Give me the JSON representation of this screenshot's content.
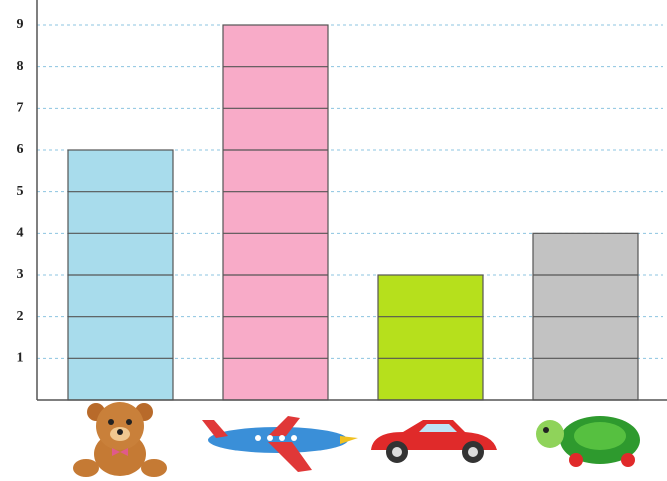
{
  "chart_data": {
    "type": "bar",
    "categories": [
      null,
      null,
      null,
      null
    ],
    "values": [
      6,
      9,
      3,
      4
    ],
    "colors": [
      "#a8dcec",
      "#f8abc8",
      "#b6e01c",
      "#c2c2c2"
    ],
    "ylim": [
      0,
      9
    ],
    "yticks": [
      1,
      2,
      3,
      4,
      5,
      6,
      7,
      8,
      9
    ],
    "grid": true
  }
}
